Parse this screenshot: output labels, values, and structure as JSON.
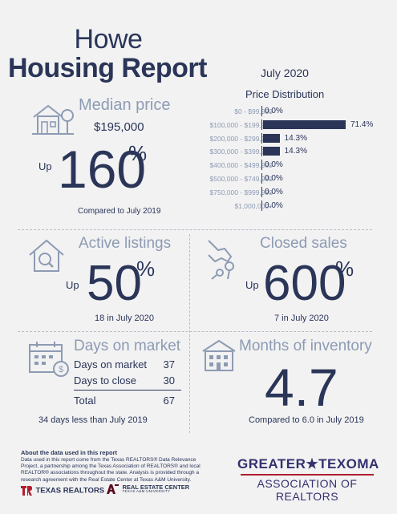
{
  "header": {
    "city": "Howe",
    "report_title": "Housing Report",
    "period": "July 2020"
  },
  "median_price": {
    "heading": "Median price",
    "value": "$195,000",
    "direction": "Up",
    "change": "160",
    "percent_sign": "%",
    "comparison": "Compared to July 2019"
  },
  "price_distribution": {
    "title": "Price Distribution",
    "rows": [
      {
        "range": "$0 - $99,999",
        "pct": "0.0%",
        "value": 0.0
      },
      {
        "range": "$100,000 - $199,999",
        "pct": "71.4%",
        "value": 71.4
      },
      {
        "range": "$200,000 - $299,999",
        "pct": "14.3%",
        "value": 14.3
      },
      {
        "range": "$300,000 - $399,999",
        "pct": "14.3%",
        "value": 14.3
      },
      {
        "range": "$400,000 - $499,999",
        "pct": "0.0%",
        "value": 0.0
      },
      {
        "range": "$500,000 - $749,999",
        "pct": "0.0%",
        "value": 0.0
      },
      {
        "range": "$750,000 - $999,999",
        "pct": "0.0%",
        "value": 0.0
      },
      {
        "range": "$1,000,000+",
        "pct": "0.0%",
        "value": 0.0
      }
    ]
  },
  "active_listings": {
    "heading": "Active listings",
    "direction": "Up",
    "change": "50",
    "percent_sign": "%",
    "caption": "18 in July 2020"
  },
  "closed_sales": {
    "heading": "Closed sales",
    "direction": "Up",
    "change": "600",
    "percent_sign": "%",
    "caption": "7 in July 2020"
  },
  "days_on_market": {
    "heading": "Days on market",
    "rows": [
      {
        "label": "Days on market",
        "value": "37"
      },
      {
        "label": "Days to close",
        "value": "30"
      }
    ],
    "total_label": "Total",
    "total_value": "67",
    "caption": "34 days less than July 2019"
  },
  "months_inventory": {
    "heading": "Months of inventory",
    "value": "4.7",
    "caption": "Compared to 6.0 in July 2019"
  },
  "footer": {
    "about_title": "About the data used in this report",
    "about_text": "Data used in this report come from the Texas REALTORS® Data Relevance Project, a partnership among the Texas Association of REALTORS® and local REALTOR® associations throughout the state. Analysis is provided through a research agreement with the Real Estate Center at Texas A&M University.",
    "texas_realtors": "TEXAS REALTORS",
    "real_estate_center": "REAL ESTATE CENTER",
    "rec_sub": "TEXAS A&M UNIVERSITY",
    "assoc_line1": "GREATER★TEXOMA",
    "assoc_line2": "ASSOCIATION OF REALTORS"
  },
  "colors": {
    "navy": "#2a3558",
    "steel": "#8d9bb3",
    "background": "#f2f2f3",
    "accent_red": "#b11d2e",
    "assoc_purple": "#34306e"
  },
  "icons": [
    "house-tree-icon",
    "magnifier-house-icon",
    "hand-keys-icon",
    "calendar-dollar-icon",
    "building-icon"
  ]
}
